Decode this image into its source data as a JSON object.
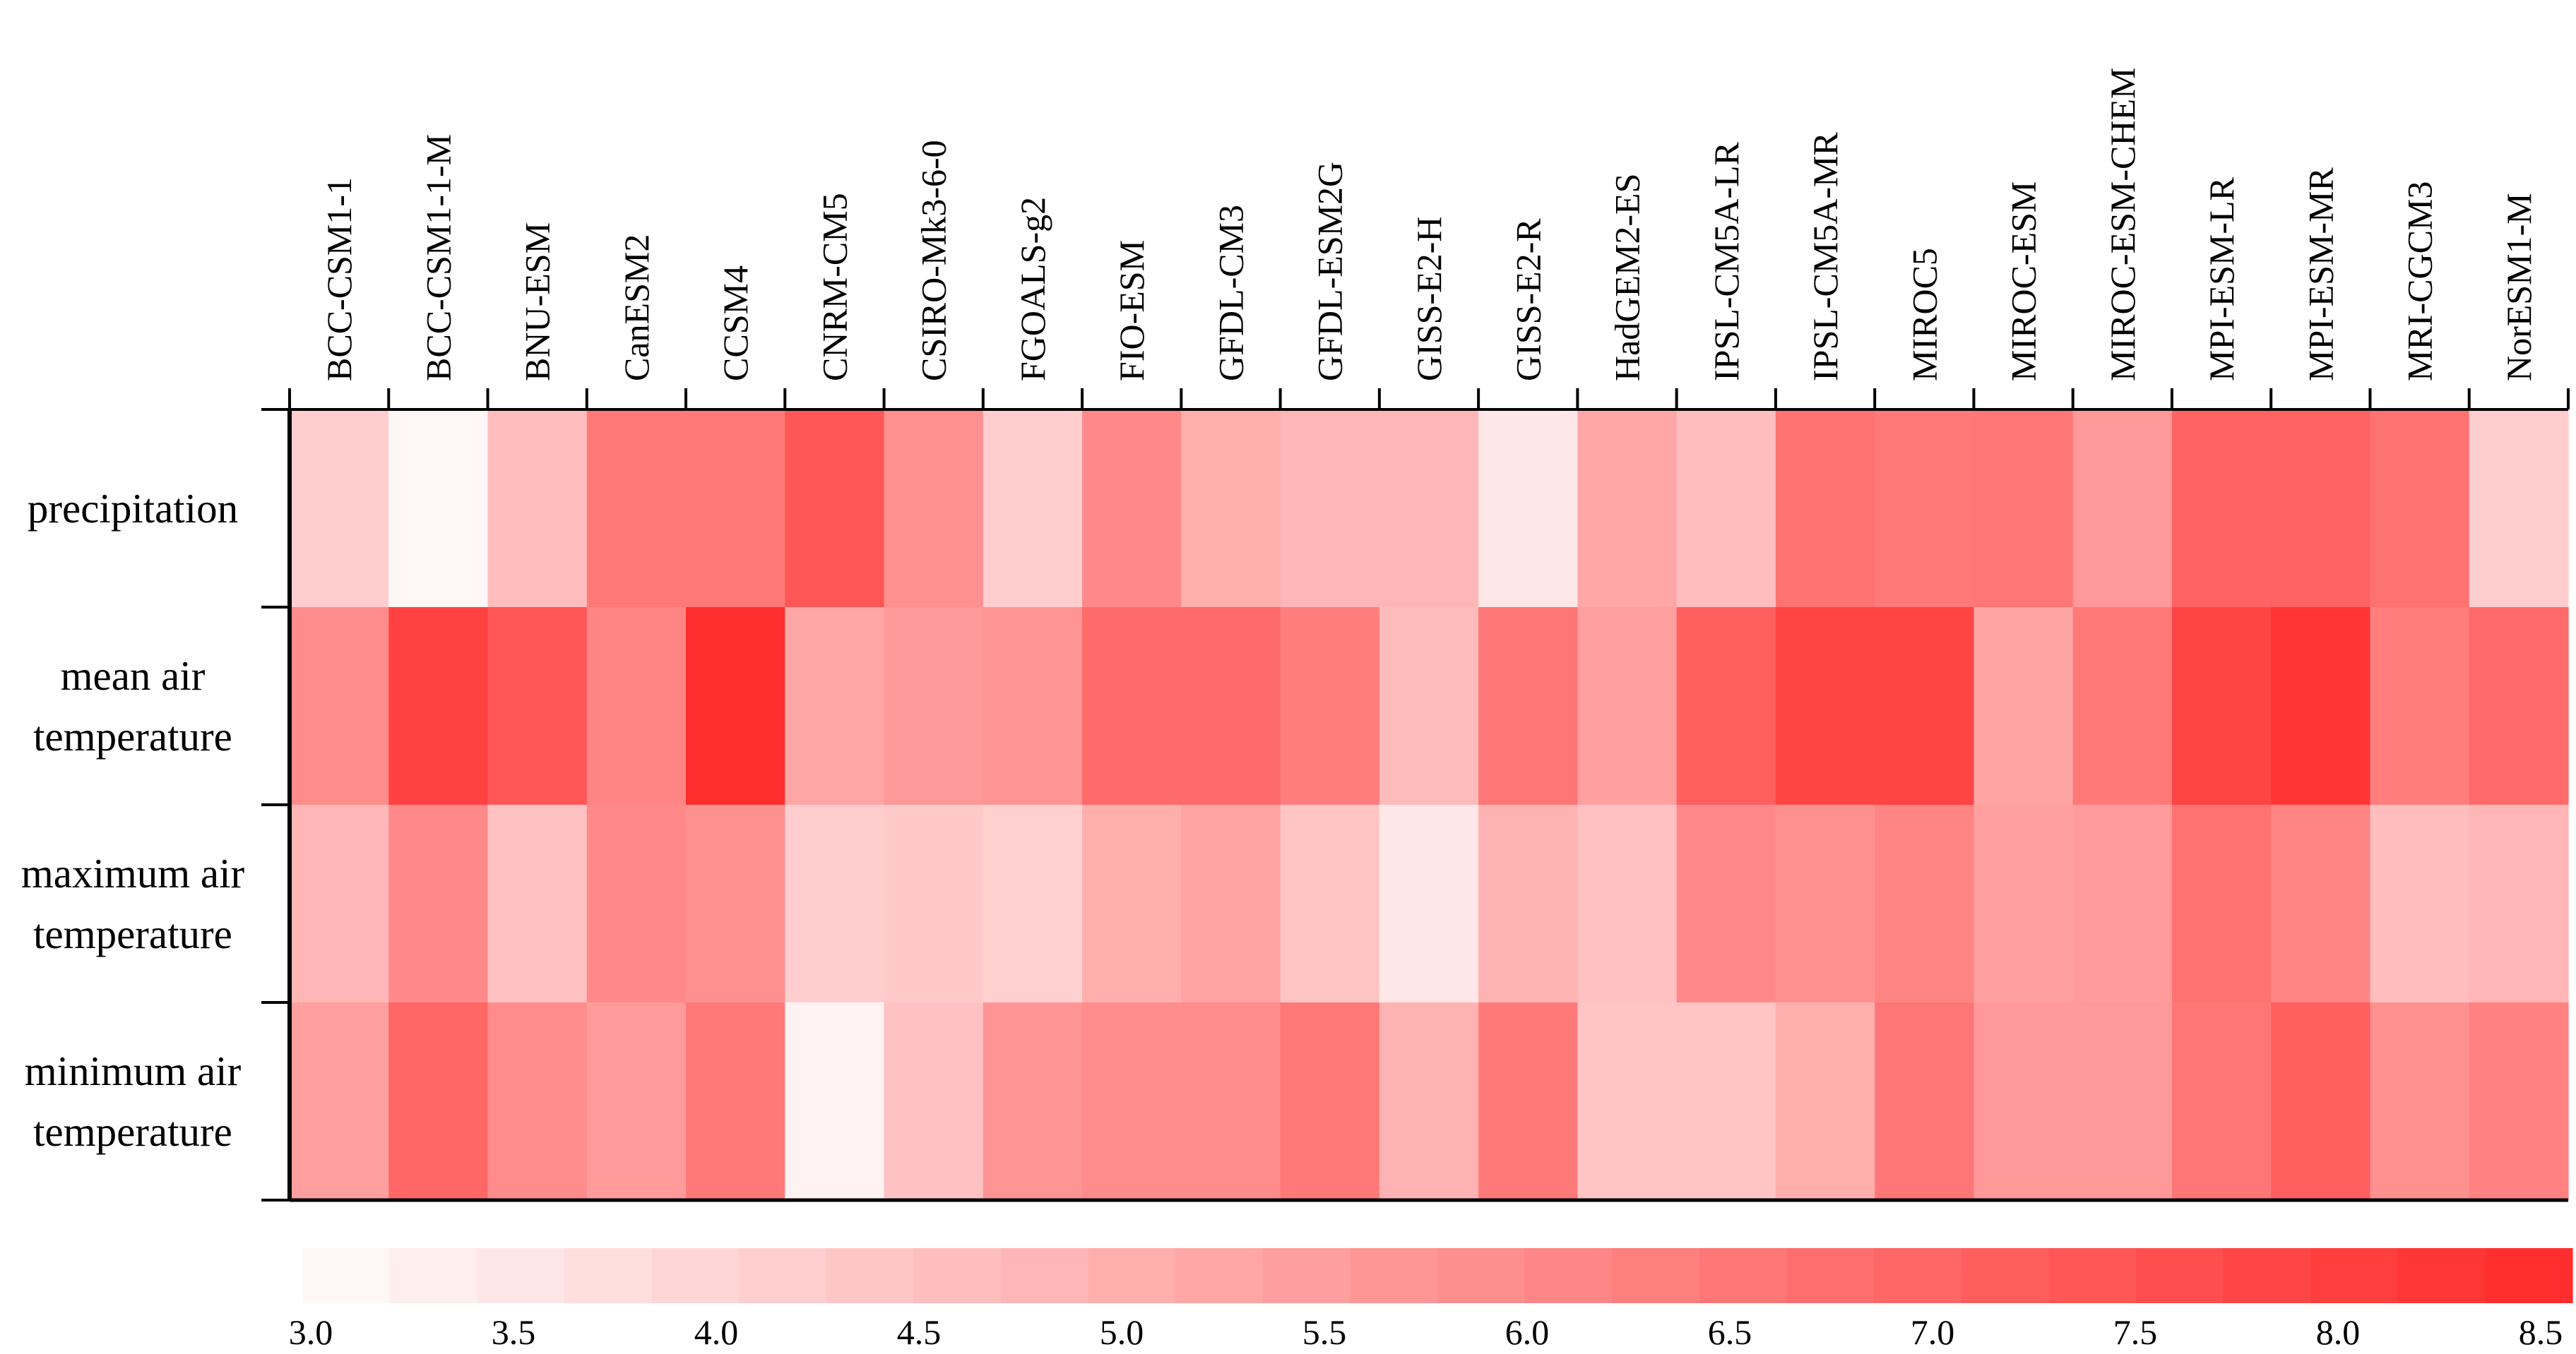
{
  "chart_data": {
    "type": "heatmap",
    "columns": [
      "BCC-CSM1-1",
      "BCC-CSM1-1-M",
      "BNU-ESM",
      "CanESM2",
      "CCSM4",
      "CNRM-CM5",
      "CSIRO-Mk3-6-0",
      "FGOALS-g2",
      "FIO-ESM",
      "GFDL-CM3",
      "GFDL-ESM2G",
      "GISS-E2-H",
      "GISS-E2-R",
      "HadGEM2-ES",
      "IPSL-CM5A-LR",
      "IPSL-CM5A-MR",
      "MIROC5",
      "MIROC-ESM",
      "MIROC-ESM-CHEM",
      "MPI-ESM-LR",
      "MPI-ESM-MR",
      "MRI-CGCM3",
      "NorESM1-M"
    ],
    "rows": [
      {
        "name": "precipitation",
        "label_lines": [
          "precipitation"
        ]
      },
      {
        "name": "mean air temperature",
        "label_lines": [
          "mean air",
          "temperature"
        ]
      },
      {
        "name": "maximum air temperature",
        "label_lines": [
          "maximum air",
          "temperature"
        ]
      },
      {
        "name": "minimum air temperature",
        "label_lines": [
          "minimum air",
          "temperature"
        ]
      }
    ],
    "values": [
      [
        4.2,
        3.1,
        4.6,
        6.4,
        6.4,
        7.3,
        5.8,
        4.2,
        6.0,
        5.0,
        4.8,
        4.8,
        3.5,
        5.2,
        4.6,
        6.6,
        6.4,
        6.5,
        5.6,
        7.0,
        7.0,
        6.6,
        4.2
      ],
      [
        5.9,
        7.9,
        7.3,
        6.1,
        8.4,
        5.2,
        5.6,
        5.7,
        6.8,
        6.8,
        6.3,
        4.7,
        6.5,
        5.4,
        7.1,
        7.8,
        7.8,
        5.3,
        6.4,
        7.8,
        8.2,
        6.3,
        6.8
      ],
      [
        4.8,
        6.0,
        4.5,
        6.0,
        5.8,
        4.2,
        4.3,
        4.1,
        5.0,
        5.3,
        4.4,
        3.5,
        4.9,
        4.5,
        6.0,
        5.8,
        6.1,
        5.4,
        5.5,
        6.6,
        6.1,
        4.6,
        4.8
      ],
      [
        5.4,
        6.9,
        5.9,
        5.5,
        6.4,
        3.2,
        4.5,
        5.7,
        5.9,
        5.9,
        6.4,
        4.9,
        6.4,
        4.4,
        4.4,
        5.0,
        6.5,
        5.6,
        5.6,
        6.5,
        7.1,
        5.8,
        6.2
      ]
    ],
    "colorbar": {
      "min": 3.0,
      "max": 8.5,
      "ticks": [
        "3.0",
        "3.5",
        "4.0",
        "4.5",
        "5.0",
        "5.5",
        "6.0",
        "6.5",
        "7.0",
        "7.5",
        "8.0",
        "8.5"
      ],
      "low_color": "#FFFAFA",
      "high_color": "#FF2A2A"
    },
    "title": "",
    "xlabel": "",
    "ylabel": ""
  }
}
